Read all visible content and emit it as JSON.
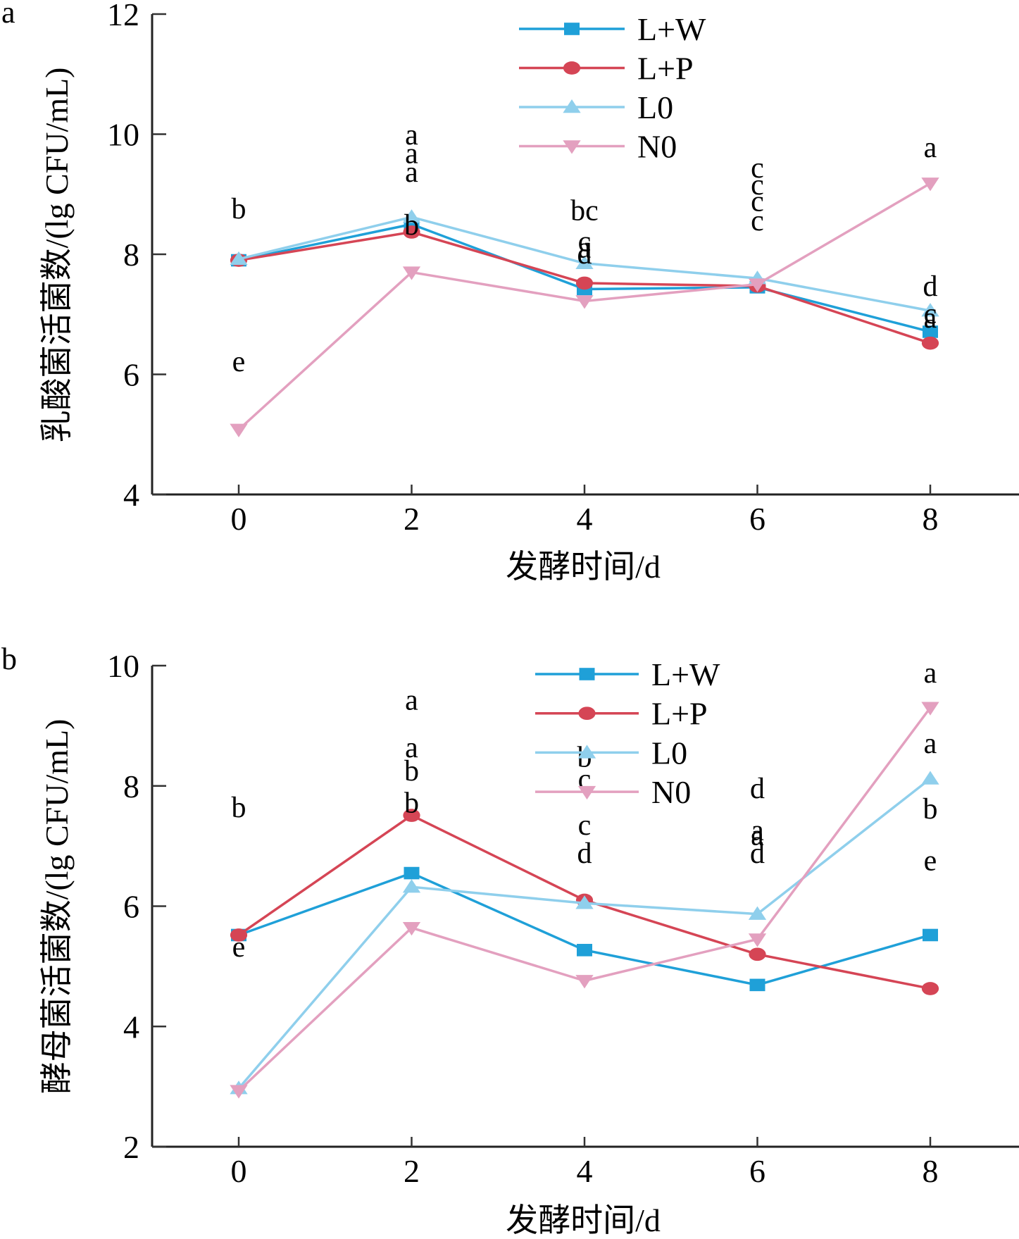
{
  "chart_data": [
    {
      "panel": "a",
      "type": "line",
      "ylabel": "乳酸菌活菌数/(lg CFU/mL)",
      "xlabel": "发酵时间/d",
      "x": [
        0,
        2,
        4,
        6,
        8
      ],
      "xticks": [
        "0",
        "2",
        "4",
        "6",
        "8"
      ],
      "yticks": [
        "4",
        "6",
        "8",
        "10",
        "12"
      ],
      "ytick_values": [
        4,
        6,
        8,
        10,
        12
      ],
      "ylim": [
        4,
        12
      ],
      "xlim": [
        -1.1,
        9.8
      ],
      "grid": false,
      "legend_position": "top-center",
      "series": [
        {
          "name": "L+W",
          "color": "#1fa0d8",
          "marker": "square",
          "values": [
            7.9,
            8.5,
            7.42,
            7.45,
            6.71
          ]
        },
        {
          "name": "L+P",
          "color": "#d54555",
          "marker": "circle",
          "values": [
            7.9,
            8.37,
            7.52,
            7.47,
            6.52
          ]
        },
        {
          "name": "L0",
          "color": "#8fcfec",
          "marker": "triangle-up",
          "values": [
            7.92,
            8.62,
            7.85,
            7.6,
            7.06
          ]
        },
        {
          "name": "N0",
          "color": "#e3a0bf",
          "marker": "triangle-down",
          "values": [
            5.08,
            7.7,
            7.22,
            7.5,
            9.18
          ]
        }
      ],
      "annotations": [
        {
          "x": 0,
          "y": 8.6,
          "text": "b"
        },
        {
          "x": 0,
          "y": 6.05,
          "text": "e"
        },
        {
          "x": 2,
          "y": 9.83,
          "text": "a"
        },
        {
          "x": 2,
          "y": 9.52,
          "text": "a"
        },
        {
          "x": 2,
          "y": 9.21,
          "text": "a"
        },
        {
          "x": 2,
          "y": 8.33,
          "text": "b"
        },
        {
          "x": 4,
          "y": 8.57,
          "text": "bc"
        },
        {
          "x": 4,
          "y": 8.05,
          "text": "c"
        },
        {
          "x": 4,
          "y": 7.95,
          "text": "a"
        },
        {
          "x": 4,
          "y": 7.85,
          "text": "d"
        },
        {
          "x": 6,
          "y": 9.28,
          "text": "c"
        },
        {
          "x": 6,
          "y": 9.0,
          "text": "c"
        },
        {
          "x": 6,
          "y": 8.72,
          "text": "c"
        },
        {
          "x": 6,
          "y": 8.4,
          "text": "c"
        },
        {
          "x": 8,
          "y": 9.62,
          "text": "a"
        },
        {
          "x": 8,
          "y": 7.31,
          "text": "d"
        },
        {
          "x": 8,
          "y": 6.85,
          "text": "c"
        },
        {
          "x": 8,
          "y": 6.78,
          "text": "a"
        }
      ]
    },
    {
      "panel": "b",
      "type": "line",
      "ylabel": "酵母菌活菌数/(lg CFU/mL)",
      "xlabel": "发酵时间/d",
      "x": [
        0,
        2,
        4,
        6,
        8
      ],
      "xticks": [
        "0",
        "2",
        "4",
        "6",
        "8"
      ],
      "yticks": [
        "2",
        "4",
        "6",
        "8",
        "10"
      ],
      "ytick_values": [
        2,
        4,
        6,
        8,
        10
      ],
      "ylim": [
        2,
        10
      ],
      "xlim": [
        -1.1,
        9.8
      ],
      "grid": false,
      "legend_position": "top-center",
      "series": [
        {
          "name": "L+W",
          "color": "#1fa0d8",
          "marker": "square",
          "values": [
            5.52,
            6.55,
            5.27,
            4.69,
            5.52
          ]
        },
        {
          "name": "L+P",
          "color": "#d54555",
          "marker": "circle",
          "values": [
            5.52,
            7.51,
            6.1,
            5.2,
            4.63
          ]
        },
        {
          "name": "L0",
          "color": "#8fcfec",
          "marker": "triangle-up",
          "values": [
            2.97,
            6.32,
            6.05,
            5.87,
            8.12
          ]
        },
        {
          "name": "N0",
          "color": "#e3a0bf",
          "marker": "triangle-down",
          "values": [
            2.93,
            5.64,
            4.76,
            5.45,
            9.3
          ]
        }
      ],
      "annotations": [
        {
          "x": 0,
          "y": 7.48,
          "text": "b"
        },
        {
          "x": 0,
          "y": 5.16,
          "text": "e"
        },
        {
          "x": 2,
          "y": 9.27,
          "text": "a"
        },
        {
          "x": 2,
          "y": 8.48,
          "text": "a"
        },
        {
          "x": 2,
          "y": 8.09,
          "text": "b"
        },
        {
          "x": 2,
          "y": 7.56,
          "text": "b"
        },
        {
          "x": 4,
          "y": 8.32,
          "text": "b"
        },
        {
          "x": 4,
          "y": 7.95,
          "text": "c"
        },
        {
          "x": 4,
          "y": 7.19,
          "text": "c"
        },
        {
          "x": 4,
          "y": 6.72,
          "text": "d"
        },
        {
          "x": 6,
          "y": 7.8,
          "text": "d"
        },
        {
          "x": 6,
          "y": 7.1,
          "text": "a"
        },
        {
          "x": 6,
          "y": 7.02,
          "text": "a"
        },
        {
          "x": 6,
          "y": 6.72,
          "text": "d"
        },
        {
          "x": 8,
          "y": 9.72,
          "text": "a"
        },
        {
          "x": 8,
          "y": 8.55,
          "text": "a"
        },
        {
          "x": 8,
          "y": 7.46,
          "text": "b"
        },
        {
          "x": 8,
          "y": 6.6,
          "text": "e"
        }
      ]
    }
  ]
}
